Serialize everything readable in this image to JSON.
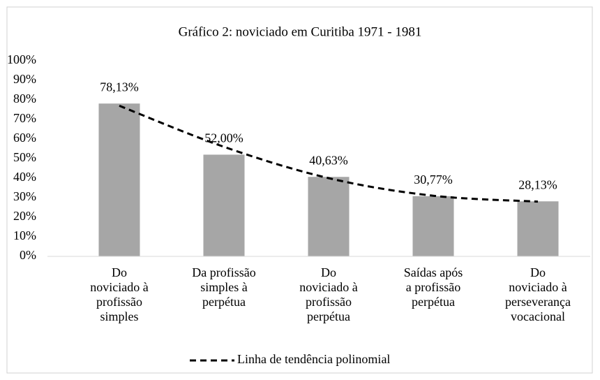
{
  "chart_data": {
    "type": "bar",
    "title": "Gráfico 2: noviciado em Curitiba 1971 - 1981",
    "categories": [
      [
        "Do",
        "noviciado à",
        "profissão",
        "simples"
      ],
      [
        "Da profissão",
        "simples à",
        "perpétua"
      ],
      [
        "Do",
        "noviciado à",
        "profissão",
        "perpétua"
      ],
      [
        "Saídas após",
        "a profissão",
        "perpétua"
      ],
      [
        "Do",
        "noviciado à",
        "perseverança",
        "vocacional"
      ]
    ],
    "values": [
      78.13,
      52.0,
      40.63,
      30.77,
      28.13
    ],
    "value_labels": [
      "78,13%",
      "52,00%",
      "40,63%",
      "30,77%",
      "28,13%"
    ],
    "color": "#a6a6a6",
    "ylim": [
      0,
      100
    ],
    "yticks": [
      {
        "value": 0,
        "label": "0%"
      },
      {
        "value": 10,
        "label": "10%"
      },
      {
        "value": 20,
        "label": "20%"
      },
      {
        "value": 30,
        "label": "30%"
      },
      {
        "value": 40,
        "label": "40%"
      },
      {
        "value": 50,
        "label": "50%"
      },
      {
        "value": 60,
        "label": "60%"
      },
      {
        "value": 70,
        "label": "70%"
      },
      {
        "value": 80,
        "label": "80%"
      },
      {
        "value": 90,
        "label": "90%"
      },
      {
        "value": 100,
        "label": "100%"
      }
    ],
    "grid": false,
    "trendline": {
      "name": "Linha de tendência polinomial",
      "color": "#000000",
      "values": [
        77,
        56,
        40,
        31,
        28
      ]
    },
    "legend": "bottom"
  }
}
